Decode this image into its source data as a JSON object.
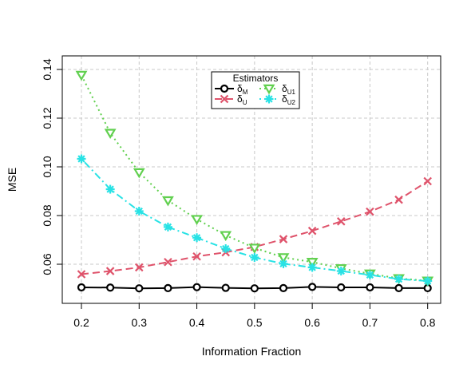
{
  "chart_data": {
    "type": "line",
    "xlabel": "Information Fraction",
    "ylabel": "MSE",
    "xlim": [
      0.2,
      0.8
    ],
    "ylim": [
      0.05,
      0.14
    ],
    "x_ticks": [
      "0.2",
      "0.3",
      "0.4",
      "0.5",
      "0.6",
      "0.7",
      "0.8"
    ],
    "y_ticks": [
      "0.06",
      "0.08",
      "0.10",
      "0.12",
      "0.14"
    ],
    "grid": true,
    "legend": {
      "title": "Estimators",
      "placement": "top-center"
    },
    "x": [
      0.2,
      0.25,
      0.3,
      0.35,
      0.4,
      0.45,
      0.5,
      0.55,
      0.6,
      0.65,
      0.7,
      0.75,
      0.8
    ],
    "series": [
      {
        "name": "δ",
        "subscript": "M",
        "color": "#000000",
        "line_style": "solid",
        "marker": "circle",
        "values": [
          0.0505,
          0.0504,
          0.0501,
          0.0502,
          0.0506,
          0.0503,
          0.0501,
          0.0502,
          0.0507,
          0.0505,
          0.0505,
          0.0502,
          0.0502
        ]
      },
      {
        "name": "δ",
        "subscript": "U",
        "color": "#df536b",
        "line_style": "dashed",
        "marker": "x",
        "values": [
          0.0559,
          0.0572,
          0.0587,
          0.0609,
          0.0632,
          0.0649,
          0.0671,
          0.0703,
          0.0737,
          0.0776,
          0.0816,
          0.0865,
          0.0941
        ]
      },
      {
        "name": "δ",
        "subscript": "U1",
        "color": "#61d04f",
        "line_style": "dotted",
        "marker": "triangle-down",
        "values": [
          0.1377,
          0.1139,
          0.0977,
          0.0862,
          0.0785,
          0.0719,
          0.0667,
          0.0628,
          0.0609,
          0.0583,
          0.0561,
          0.0542,
          0.0532
        ]
      },
      {
        "name": "δ",
        "subscript": "U2",
        "color": "#28e2e5",
        "line_style": "dotdash",
        "marker": "asterisk",
        "values": [
          0.1033,
          0.0908,
          0.0818,
          0.0753,
          0.0709,
          0.0664,
          0.0628,
          0.0602,
          0.0587,
          0.0572,
          0.0556,
          0.0539,
          0.0531
        ]
      }
    ]
  }
}
